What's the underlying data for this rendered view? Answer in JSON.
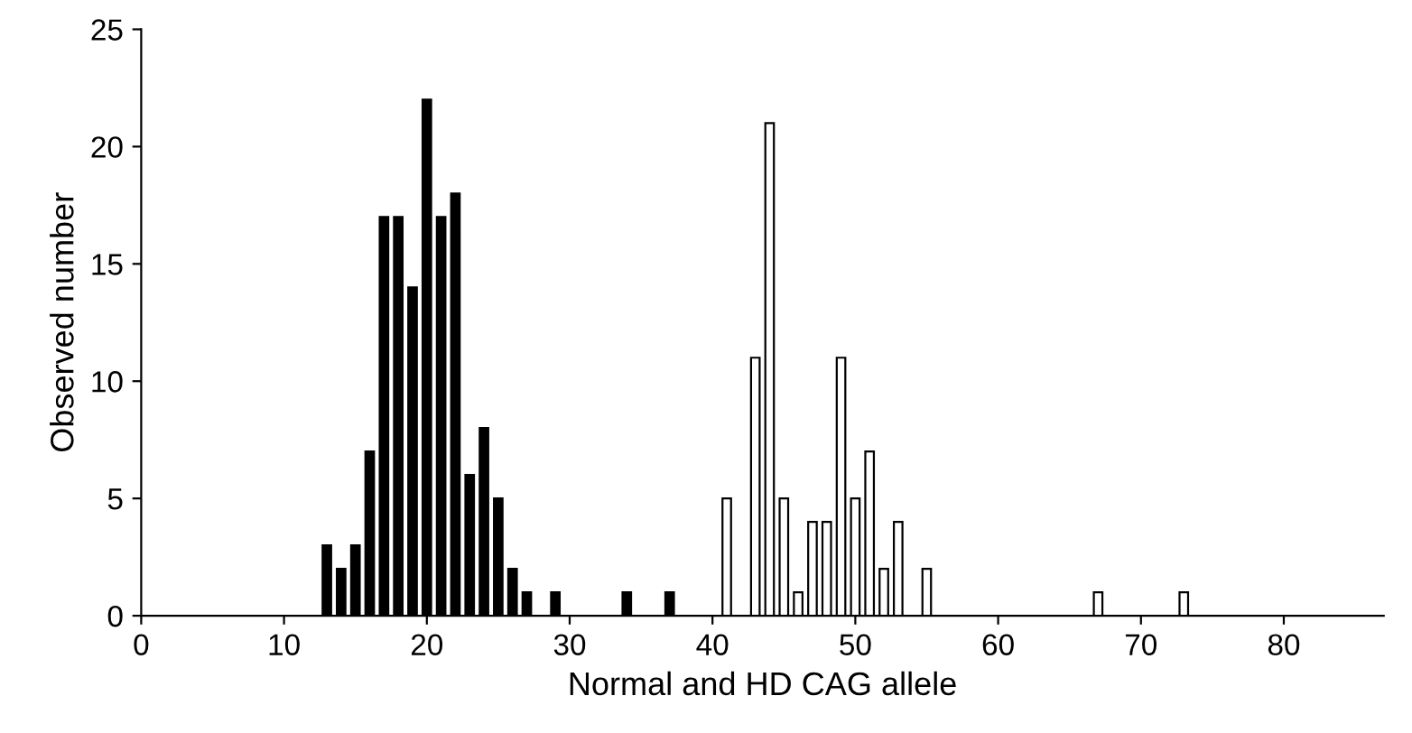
{
  "chart_data": {
    "type": "bar",
    "xlabel": "Normal and HD CAG allele",
    "ylabel": "Observed number",
    "series": [
      {
        "color": "#000000",
        "x": [
          13,
          14,
          15,
          16,
          17,
          18,
          19,
          20,
          21,
          22,
          23,
          24,
          25,
          26,
          27,
          29,
          34,
          37
        ],
        "values": [
          3,
          2,
          3,
          7,
          17,
          17,
          14,
          22,
          17,
          18,
          6,
          8,
          5,
          2,
          1,
          1,
          1,
          1
        ]
      },
      {
        "color": "#ffffff",
        "x": [
          41,
          43,
          44,
          45,
          46,
          47,
          48,
          49,
          50,
          51,
          52,
          53,
          55,
          67,
          73
        ],
        "values": [
          5,
          11,
          21,
          5,
          1,
          4,
          4,
          11,
          5,
          7,
          2,
          4,
          2,
          1,
          1
        ]
      }
    ],
    "xlim": [
      0,
      87
    ],
    "xticks": [
      0,
      10,
      20,
      30,
      40,
      50,
      60,
      70,
      80
    ],
    "ylim": [
      0,
      25
    ],
    "yticks": [
      0,
      5,
      10,
      15,
      20,
      25
    ],
    "grid": false,
    "legend": false
  }
}
